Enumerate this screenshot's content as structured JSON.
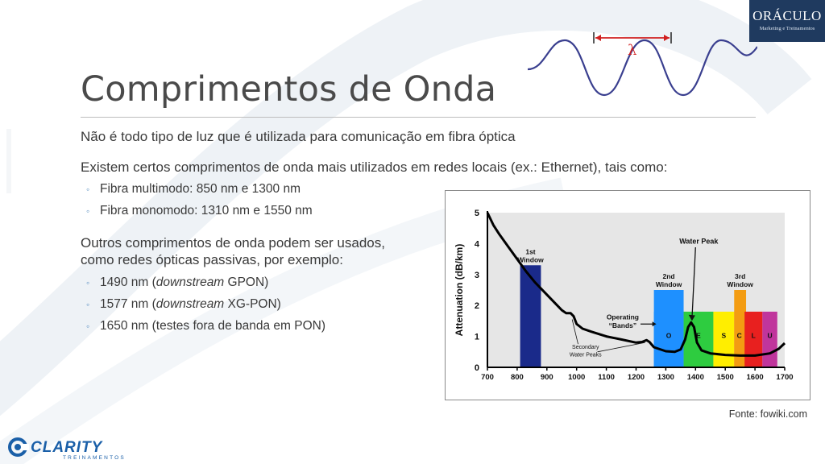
{
  "slide": {
    "title": "Comprimentos de Onda",
    "bullets": [
      "Não é todo tipo de luz que é utilizada para comunicação em fibra óptica",
      "Existem certos comprimentos de onda mais utilizados em redes locais (ex.: Ethernet), tais como:"
    ],
    "sub_bullets_a": [
      "Fibra multimodo: 850 nm e 1300 nm",
      "Fibra monomodo: 1310 nm e 1550 nm"
    ],
    "bullet3_line1": "Outros comprimentos de onda podem ser usados,",
    "bullet3_line2": "como redes ópticas passivas, por exemplo:",
    "sub_bullets_b": [
      {
        "pre": "1490 nm (",
        "em": "downstream",
        "post": " GPON)"
      },
      {
        "pre": "1577 nm (",
        "em": "downstream",
        "post": " XG-PON)"
      },
      {
        "pre": "1650 nm (testes fora de banda em PON)",
        "em": "",
        "post": ""
      }
    ],
    "marker": "◦",
    "source": "Fonte: fowiki.com",
    "wave_symbol": "λ"
  },
  "logos": {
    "oraculo_name": "ORÁCULO",
    "oraculo_sub": "Marketing e Treinamentos",
    "clarity_name": "CLARITY",
    "clarity_sub": "TREINAMENTOS"
  },
  "colors": {
    "wave": "#3a3f8f",
    "arrow": "#d11f1f",
    "window1": "#1a2a8a",
    "window2": "#1e90ff",
    "window3": "#f39c12",
    "chart_bg": "#e6e6e6",
    "brand_dark": "#1f3a5f",
    "brand_blue": "#1a5fa8"
  },
  "chart_data": {
    "type": "line",
    "ylabel": "Attenuation (dB/km)",
    "xlim": [
      700,
      1700
    ],
    "ylim": [
      0,
      5
    ],
    "x_ticks": [
      700,
      800,
      900,
      1000,
      1100,
      1200,
      1300,
      1400,
      1500,
      1600,
      1700
    ],
    "y_ticks": [
      0,
      1,
      2,
      3,
      4,
      5
    ],
    "curve": [
      [
        700,
        5.0
      ],
      [
        720,
        4.6
      ],
      [
        740,
        4.3
      ],
      [
        770,
        3.9
      ],
      [
        800,
        3.5
      ],
      [
        830,
        3.1
      ],
      [
        860,
        2.75
      ],
      [
        900,
        2.35
      ],
      [
        930,
        2.05
      ],
      [
        950,
        1.85
      ],
      [
        965,
        1.75
      ],
      [
        980,
        1.75
      ],
      [
        990,
        1.65
      ],
      [
        1000,
        1.4
      ],
      [
        1020,
        1.25
      ],
      [
        1050,
        1.15
      ],
      [
        1100,
        1.0
      ],
      [
        1150,
        0.9
      ],
      [
        1200,
        0.8
      ],
      [
        1220,
        0.82
      ],
      [
        1235,
        0.88
      ],
      [
        1245,
        0.82
      ],
      [
        1260,
        0.65
      ],
      [
        1300,
        0.52
      ],
      [
        1330,
        0.5
      ],
      [
        1350,
        0.58
      ],
      [
        1365,
        0.9
      ],
      [
        1375,
        1.3
      ],
      [
        1385,
        1.45
      ],
      [
        1395,
        1.3
      ],
      [
        1405,
        0.8
      ],
      [
        1420,
        0.55
      ],
      [
        1450,
        0.45
      ],
      [
        1500,
        0.4
      ],
      [
        1550,
        0.38
      ],
      [
        1600,
        0.38
      ],
      [
        1650,
        0.45
      ],
      [
        1680,
        0.6
      ],
      [
        1700,
        0.78
      ]
    ],
    "windows": [
      {
        "label_1": "1st",
        "label_2": "Window",
        "x0": 810,
        "x1": 880,
        "height": 3.3,
        "color": "#1a2a8a"
      },
      {
        "label_1": "2nd",
        "label_2": "Window",
        "x0": 1260,
        "x1": 1360,
        "height": 2.5,
        "color": "#1e90ff"
      },
      {
        "label_1": "3rd",
        "label_2": "Window",
        "x0": 1530,
        "x1": 1570,
        "height": 2.5,
        "color": "#f39c12"
      }
    ],
    "bands": [
      {
        "label": "O",
        "x0": 1260,
        "x1": 1360,
        "height": 1.8,
        "color": "#1e90ff"
      },
      {
        "label": "E",
        "x0": 1360,
        "x1": 1460,
        "height": 1.8,
        "color": "#2ecc40"
      },
      {
        "label": "S",
        "x0": 1460,
        "x1": 1530,
        "height": 1.8,
        "color": "#ffee00"
      },
      {
        "label": "C",
        "x0": 1530,
        "x1": 1565,
        "height": 1.8,
        "color": "#f39c12"
      },
      {
        "label": "L",
        "x0": 1565,
        "x1": 1625,
        "height": 1.8,
        "color": "#e8201f"
      },
      {
        "label": "U",
        "x0": 1625,
        "x1": 1675,
        "height": 1.8,
        "color": "#c0359c"
      }
    ],
    "annotations": {
      "water_peak": "Water Peak",
      "operating_1": "Operating",
      "operating_2": "“Bands”",
      "secondary_1": "Secondary",
      "secondary_2": "Water Peaks"
    }
  }
}
